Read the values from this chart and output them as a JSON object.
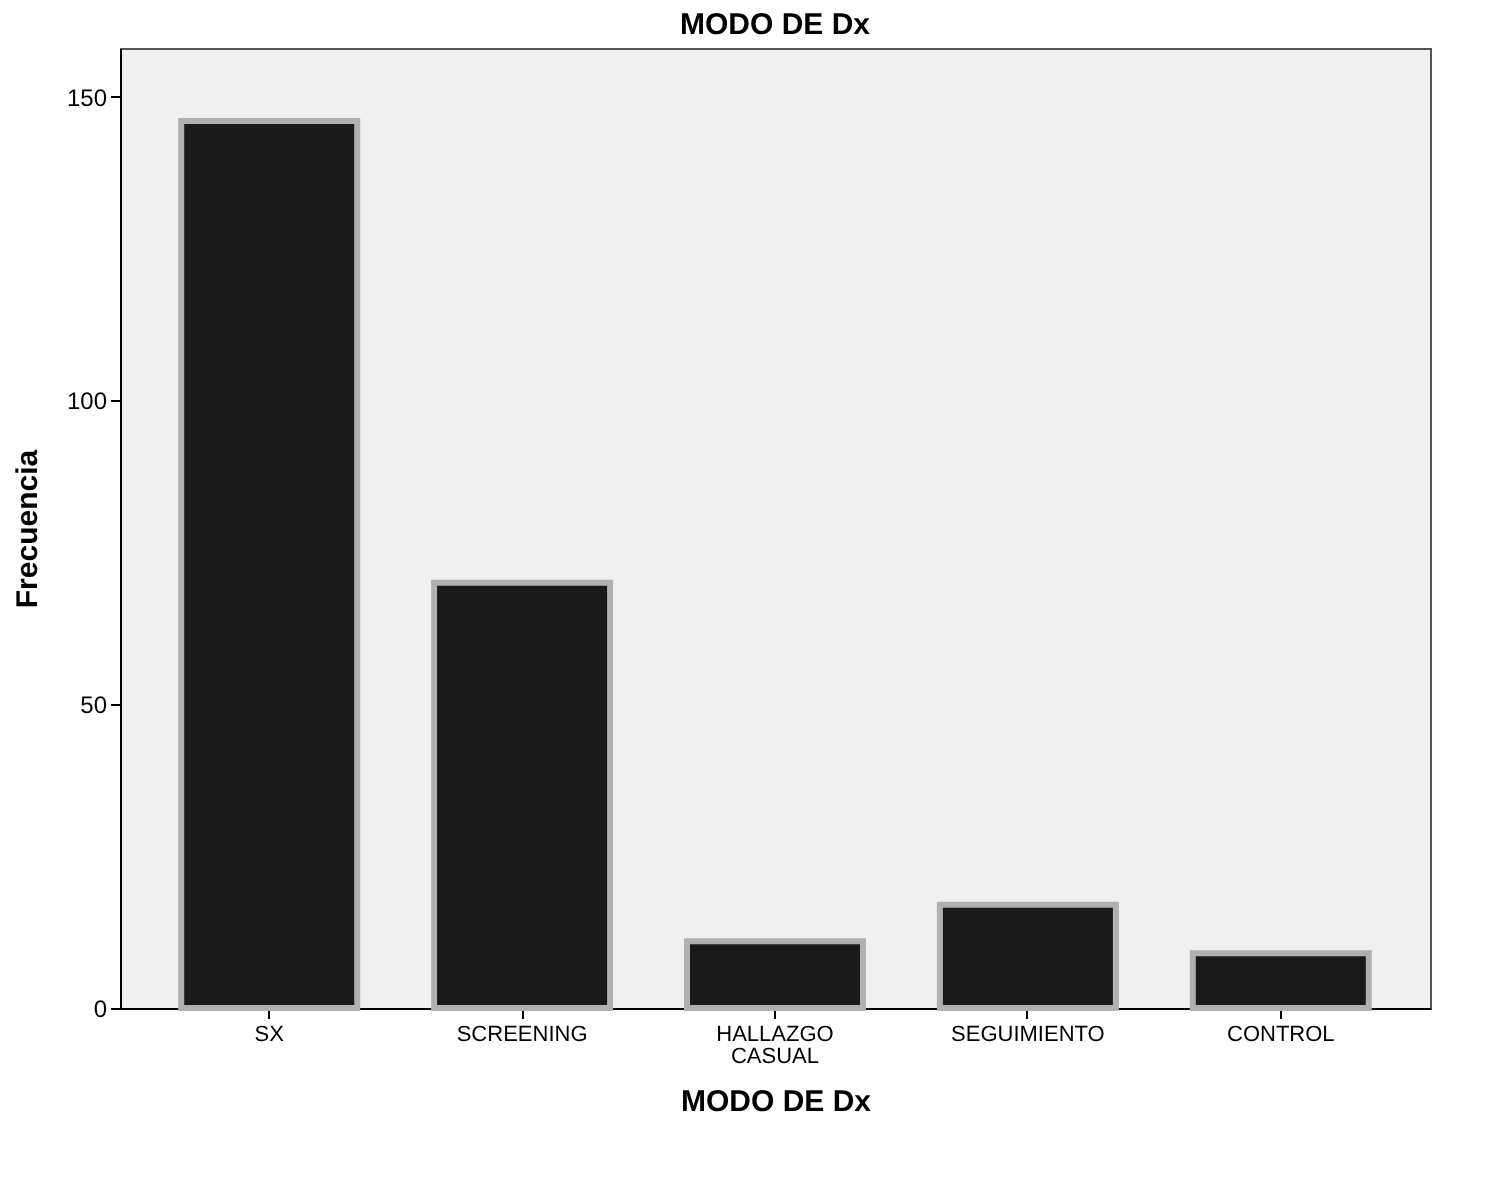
{
  "chart_data": {
    "type": "bar",
    "title": "MODO DE Dx",
    "xlabel": "MODO DE Dx",
    "ylabel": "Frecuencia",
    "categories": [
      "SX",
      "SCREENING",
      "HALLAZGO CASUAL",
      "SEGUIMIENTO",
      "CONTROL"
    ],
    "values": [
      146,
      70,
      11,
      17,
      9
    ],
    "color": "#1a1a1a",
    "ylim": [
      0,
      158
    ],
    "yticks": [
      0,
      50,
      100,
      150
    ],
    "grid": false
  }
}
